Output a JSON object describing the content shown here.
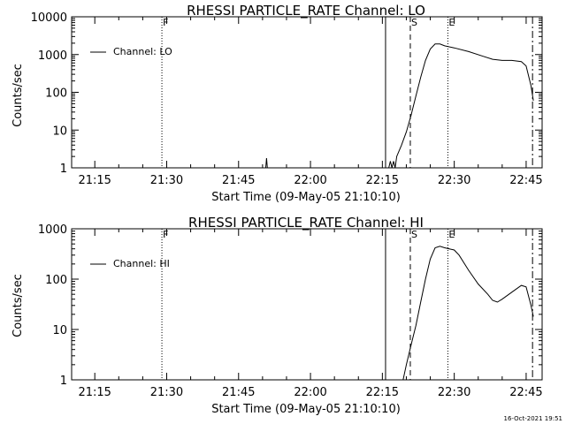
{
  "chart_data": [
    {
      "type": "line",
      "title": "RHESSI PARTICLE_RATE Channel: LO",
      "xlabel": "Start Time (09-May-05 21:10:10)",
      "ylabel": "Counts/sec",
      "yscale": "log",
      "ylim": [
        1,
        10000
      ],
      "xlim": [
        "21:10:10",
        "22:48:20"
      ],
      "x_ticks": [
        "21:15",
        "21:30",
        "21:45",
        "22:00",
        "22:15",
        "22:30",
        "22:45"
      ],
      "y_ticks": [
        "1",
        "10",
        "100",
        "1000",
        "10000"
      ],
      "legend": "Channel: LO",
      "legend_position": "top-left",
      "markers": [
        {
          "label": "F",
          "time": "21:29:00",
          "style": "dotted"
        },
        {
          "label": "",
          "time": "22:15:40",
          "style": "solid"
        },
        {
          "label": "S",
          "time": "22:20:50",
          "style": "dashed"
        },
        {
          "label": "E",
          "time": "22:28:40",
          "style": "dotted"
        },
        {
          "label": "",
          "time": "22:46:20",
          "style": "dashdot"
        }
      ],
      "series": [
        {
          "name": "Channel: LO",
          "segments": [
            [
              [
                "21:50:40",
                1.0
              ],
              [
                "21:50:50",
                1.8
              ],
              [
                "21:51:00",
                1.0
              ]
            ],
            [
              [
                "22:16:20",
                1.0
              ],
              [
                "22:16:40",
                1.5
              ],
              [
                "22:17:00",
                1.0
              ],
              [
                "22:17:20",
                1.5
              ],
              [
                "22:17:40",
                1.0
              ],
              [
                "22:18:00",
                2.0
              ],
              [
                "22:19:00",
                4.0
              ],
              [
                "22:20:00",
                9.0
              ],
              [
                "22:21:00",
                25
              ],
              [
                "22:22:00",
                80
              ],
              [
                "22:23:00",
                250
              ],
              [
                "22:24:00",
                700
              ],
              [
                "22:25:00",
                1400
              ],
              [
                "22:26:00",
                1900
              ],
              [
                "22:27:00",
                1900
              ],
              [
                "22:28:00",
                1700
              ],
              [
                "22:30:00",
                1500
              ],
              [
                "22:33:00",
                1200
              ],
              [
                "22:36:00",
                900
              ],
              [
                "22:38:00",
                750
              ],
              [
                "22:40:00",
                700
              ],
              [
                "22:42:00",
                700
              ],
              [
                "22:44:00",
                650
              ],
              [
                "22:45:00",
                500
              ],
              [
                "22:46:00",
                150
              ],
              [
                "22:46:30",
                60
              ]
            ]
          ]
        }
      ]
    },
    {
      "type": "line",
      "title": "RHESSI PARTICLE_RATE Channel: HI",
      "xlabel": "Start Time (09-May-05 21:10:10)",
      "ylabel": "Counts/sec",
      "yscale": "log",
      "ylim": [
        1,
        1000
      ],
      "xlim": [
        "21:10:10",
        "22:48:20"
      ],
      "x_ticks": [
        "21:15",
        "21:30",
        "21:45",
        "22:00",
        "22:15",
        "22:30",
        "22:45"
      ],
      "y_ticks": [
        "1",
        "10",
        "100",
        "1000"
      ],
      "legend": "Channel: HI",
      "legend_position": "top-left",
      "markers": [
        {
          "label": "F",
          "time": "21:29:00",
          "style": "dotted"
        },
        {
          "label": "",
          "time": "22:15:40",
          "style": "solid"
        },
        {
          "label": "S",
          "time": "22:20:50",
          "style": "dashed"
        },
        {
          "label": "E",
          "time": "22:28:40",
          "style": "dotted"
        },
        {
          "label": "",
          "time": "22:46:20",
          "style": "dashdot"
        }
      ],
      "series": [
        {
          "name": "Channel: HI",
          "segments": [
            [
              [
                "22:19:20",
                1.0
              ],
              [
                "22:20:00",
                2.0
              ],
              [
                "22:21:00",
                5.0
              ],
              [
                "22:22:00",
                12
              ],
              [
                "22:23:00",
                35
              ],
              [
                "22:24:00",
                100
              ],
              [
                "22:25:00",
                250
              ],
              [
                "22:26:00",
                420
              ],
              [
                "22:27:00",
                450
              ],
              [
                "22:28:00",
                420
              ],
              [
                "22:30:00",
                380
              ],
              [
                "22:31:00",
                300
              ],
              [
                "22:33:00",
                150
              ],
              [
                "22:35:00",
                80
              ],
              [
                "22:37:00",
                50
              ],
              [
                "22:38:00",
                38
              ],
              [
                "22:39:00",
                35
              ],
              [
                "22:40:00",
                40
              ],
              [
                "22:42:00",
                55
              ],
              [
                "22:44:00",
                75
              ],
              [
                "22:45:00",
                70
              ],
              [
                "22:46:00",
                30
              ],
              [
                "22:46:30",
                18
              ]
            ]
          ]
        }
      ]
    }
  ],
  "footer": {
    "stamp": "16-Oct-2021 19:51"
  }
}
